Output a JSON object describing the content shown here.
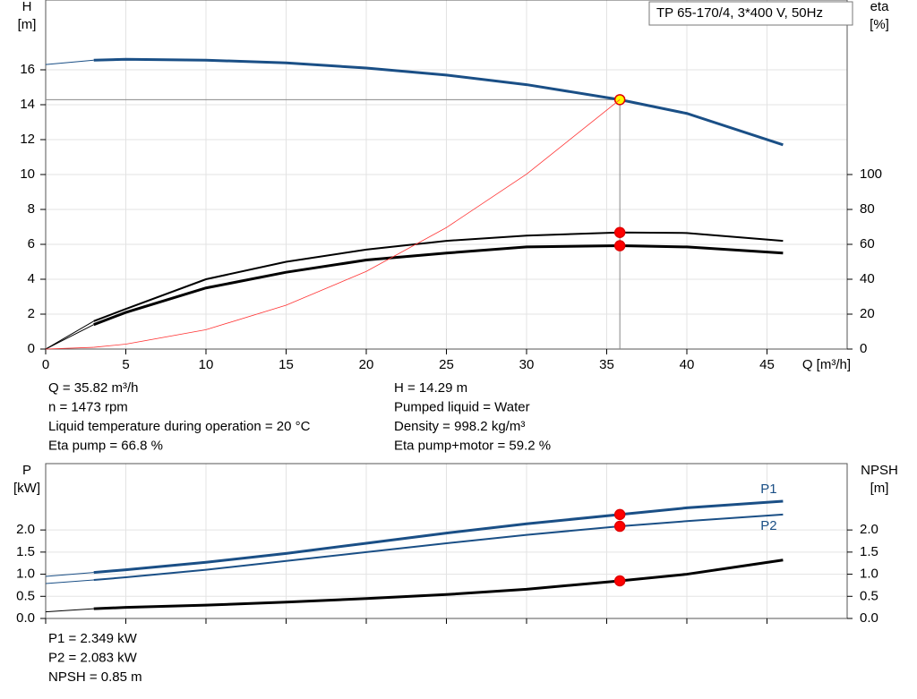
{
  "chart_data": [
    {
      "type": "line",
      "title": "TP 65-170/4, 3*400 V, 50Hz",
      "ylabel": "H",
      "yunit": "[m]",
      "y2label": "eta",
      "y2unit": "[%]",
      "xlabel": "Q [m³/h]",
      "x": [
        0,
        3,
        5,
        10,
        15,
        20,
        25,
        30,
        35.82,
        40,
        46
      ],
      "xlim": [
        0,
        50
      ],
      "xticks": [
        0,
        5,
        10,
        15,
        20,
        25,
        30,
        35,
        40,
        45
      ],
      "ylim": [
        0,
        20
      ],
      "yticks": [
        0,
        2,
        4,
        6,
        8,
        10,
        12,
        14,
        16
      ],
      "y2lim": [
        0,
        200
      ],
      "y2ticks": [
        0,
        20,
        40,
        60,
        80,
        100
      ],
      "grid": true,
      "operating_point": {
        "x": 35.82,
        "y": 14.29
      },
      "series": [
        {
          "color": "#1a4f86",
          "width": 3,
          "marker": "#ffff00",
          "values": [
            16.3,
            16.55,
            16.6,
            16.55,
            16.4,
            16.1,
            15.7,
            15.15,
            14.29,
            13.5,
            11.7
          ]
        },
        {
          "color": "#000000",
          "width": 2,
          "axis": "y2",
          "marker": "#ff0000",
          "values": [
            0,
            16,
            23,
            40,
            50,
            57,
            62,
            65,
            66.8,
            66.5,
            62
          ]
        },
        {
          "color": "#000000",
          "width": 3,
          "axis": "y2",
          "marker": "#ff0000",
          "values": [
            0,
            14,
            21,
            35,
            44,
            51,
            55,
            58.5,
            59.2,
            58.5,
            55
          ]
        },
        {
          "color": "#ff3333",
          "width": 0.8,
          "values": [
            0,
            0.1,
            0.28,
            1.11,
            2.51,
            4.45,
            6.96,
            10.02,
            14.29,
            null,
            null
          ]
        }
      ],
      "info_left": [
        "Q = 35.82 m³/h",
        "n = 1473 rpm",
        "Liquid temperature during operation = 20 °C",
        "Eta pump = 66.8 %"
      ],
      "info_right": [
        "H = 14.29 m",
        "Pumped liquid = Water",
        "Density = 998.2 kg/m³",
        "Eta pump+motor = 59.2 %"
      ]
    },
    {
      "type": "line",
      "ylabel": "P",
      "yunit": "[kW]",
      "y2label": "NPSH",
      "y2unit": "[m]",
      "x": [
        0,
        3,
        5,
        10,
        15,
        20,
        25,
        30,
        35.82,
        40,
        46
      ],
      "xlim": [
        0,
        50
      ],
      "xticks": [
        0,
        5,
        10,
        15,
        20,
        25,
        30,
        35,
        40,
        45
      ],
      "xtick_labels": false,
      "ylim": [
        0,
        3.5
      ],
      "yticks": [
        {
          "value": 0,
          "label": "0.0"
        },
        0.5,
        {
          "value": 1,
          "label": "1.0"
        },
        1.5,
        {
          "value": 2,
          "label": "2.0"
        }
      ],
      "y2lim": [
        0,
        3.5
      ],
      "y2ticks": [
        {
          "value": 0,
          "label": "0.0"
        },
        0.5,
        {
          "value": 1,
          "label": "1.0"
        },
        1.5,
        {
          "value": 2,
          "label": "2.0"
        }
      ],
      "grid": true,
      "operating_point": {
        "x": 35.82
      },
      "series": [
        {
          "name": "P1",
          "label_side": "above",
          "color": "#1a4f86",
          "width": 3,
          "marker": "#ff0000",
          "values": [
            0.95,
            1.04,
            1.1,
            1.27,
            1.47,
            1.7,
            1.93,
            2.14,
            2.349,
            2.5,
            2.65
          ]
        },
        {
          "name": "P2",
          "label_side": "below",
          "color": "#1a4f86",
          "width": 2,
          "marker": "#ff0000",
          "values": [
            0.79,
            0.87,
            0.93,
            1.1,
            1.3,
            1.5,
            1.7,
            1.89,
            2.083,
            2.2,
            2.35
          ]
        },
        {
          "color": "#000000",
          "width": 3,
          "axis": "y2",
          "marker": "#ff0000",
          "values": [
            0.15,
            0.22,
            0.25,
            0.3,
            0.37,
            0.45,
            0.54,
            0.66,
            0.85,
            1.0,
            1.32
          ]
        }
      ],
      "info": [
        "P1 = 2.349 kW",
        "P2 = 2.083 kW",
        "NPSH = 0.85 m"
      ]
    }
  ]
}
